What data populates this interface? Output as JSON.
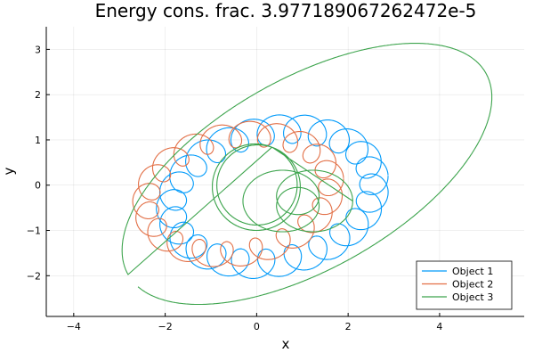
{
  "chart_data": {
    "type": "line",
    "title": "Energy cons. frac. 3.977189067262472e-5",
    "xlabel": "x",
    "ylabel": "y",
    "xlim": [
      -4.6,
      5.85
    ],
    "ylim": [
      -2.9,
      3.5
    ],
    "xticks": [
      -4,
      -2,
      0,
      2,
      4
    ],
    "yticks": [
      -2,
      -1,
      0,
      1,
      2,
      3
    ],
    "grid": true,
    "legend_position": "bottom-right",
    "series": [
      {
        "name": "Object 1",
        "color": "#009AFA",
        "curve": "loops",
        "params": {
          "cx": 0.35,
          "cy": -0.25,
          "a": 2.25,
          "b": 1.45,
          "cosO": 0.979,
          "sinO": 0.204,
          "r": 0.32,
          "N": 24,
          "tmax": 6.283,
          "dir": -1,
          "step": 0.003
        }
      },
      {
        "name": "Object 2",
        "color": "#E26F46",
        "curve": "loops",
        "params": {
          "cx": -0.4,
          "cy": -0.2,
          "a": 2.05,
          "b": 1.3,
          "cosO": 0.985,
          "sinO": 0.174,
          "r": 0.28,
          "N": 20,
          "tmax": 6.283,
          "dir": 1,
          "step": 0.003
        }
      },
      {
        "name": "Object 3",
        "color": "#3DA44D",
        "curve": "orbits",
        "params": {
          "step": 0.01
        }
      }
    ]
  }
}
